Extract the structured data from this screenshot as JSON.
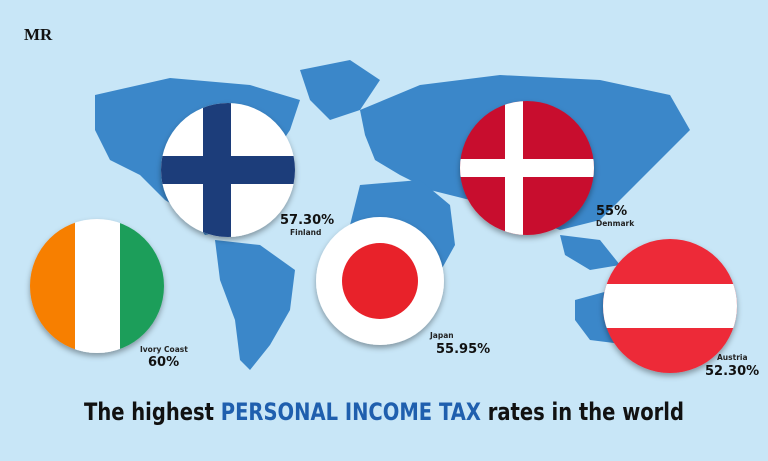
{
  "logo": "MR",
  "items": [
    {
      "country": "Finland",
      "rate": "57.30%"
    },
    {
      "country": "Denmark",
      "rate": "55%"
    },
    {
      "country": "Ivory Coast",
      "rate": "60%"
    },
    {
      "country": "Japan",
      "rate": "55.95%"
    },
    {
      "country": "Austria",
      "rate": "52.30%"
    }
  ],
  "title": {
    "before": "The highest ",
    "highlight": "PERSONAL INCOME TAX",
    "after": " rates in the world"
  }
}
